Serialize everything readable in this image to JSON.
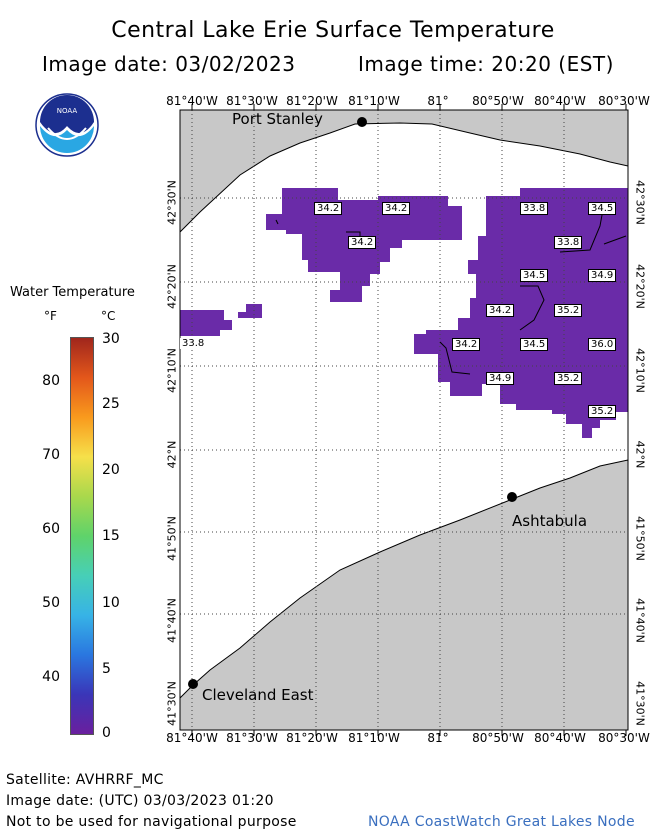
{
  "header": {
    "title": "Central Lake Erie Surface Temperature",
    "image_date": "Image date: 03/02/2023",
    "image_time": "Image time: 20:20 (EST)"
  },
  "logo": {
    "text": "NOAA"
  },
  "longitude_labels": [
    "81°40'W",
    "81°30'W",
    "81°20'W",
    "81°10'W",
    "81°",
    "80°50'W",
    "80°40'W",
    "80°30'W"
  ],
  "latitude_labels": [
    "42°30'N",
    "42°20'N",
    "42°10'N",
    "42°N",
    "41°50'N",
    "41°40'N",
    "41°30'N"
  ],
  "legend": {
    "title": "Water Temperature",
    "unit_f": "°F",
    "unit_c": "°C",
    "f_labels": [
      "80",
      "70",
      "60",
      "50",
      "40"
    ],
    "c_labels": [
      "30",
      "25",
      "20",
      "15",
      "10",
      "5",
      "0"
    ],
    "colors": [
      "#a0261c",
      "#e3571b",
      "#f99a1d",
      "#f6e04a",
      "#a9d84c",
      "#5fd36a",
      "#47cfb7",
      "#37b3e6",
      "#2a77e0",
      "#3a36b8",
      "#6a1f9e"
    ]
  },
  "places": {
    "port_stanley": "Port Stanley",
    "ashtabula": "Ashtabula",
    "cleveland_east": "Cleveland East"
  },
  "temperature_values": [
    "34.2",
    "34.2",
    "34.2",
    "33.8",
    "33.8",
    "34.5",
    "34.5",
    "34.9",
    "34.2",
    "35.2",
    "34.2",
    "34.5",
    "36.0",
    "34.9",
    "35.2",
    "35.2",
    "33.8"
  ],
  "colors": {
    "land": "#c8c8c8",
    "water_temp": "#6a2ba8",
    "grid": "#555555"
  },
  "footer": {
    "satellite": "Satellite: AVHRRF_MC",
    "utc_date": "Image date: (UTC) 03/03/2023  01:20",
    "disclaimer": "Not to be used for navigational purpose",
    "node": "NOAA CoastWatch Great Lakes Node"
  }
}
